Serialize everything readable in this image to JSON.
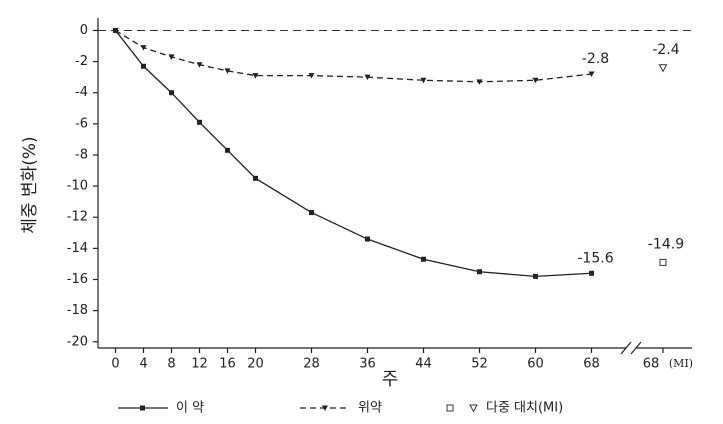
{
  "chart_data": {
    "type": "line",
    "y_label": "체중 변화(%)",
    "x_label": "주",
    "x": [
      0,
      4,
      8,
      12,
      16,
      20,
      28,
      36,
      44,
      52,
      60,
      68
    ],
    "series": [
      {
        "name": "이 약",
        "color": "#222222",
        "dash": false,
        "marker": "square",
        "values": [
          0,
          -2.3,
          -4.0,
          -5.9,
          -7.7,
          -9.5,
          -11.7,
          -13.4,
          -14.7,
          -15.5,
          -15.8,
          -15.6
        ]
      },
      {
        "name": "위약",
        "color": "#222222",
        "dash": true,
        "marker": "triangle",
        "values": [
          0,
          -1.1,
          -1.7,
          -2.2,
          -2.6,
          -2.9,
          -2.9,
          -3.0,
          -3.2,
          -3.3,
          -3.2,
          -2.8
        ]
      }
    ],
    "mi": {
      "name": "다중 대치(MI)",
      "tick_label": "68",
      "tick_suffix": "(MI)",
      "values": [
        -14.9,
        -2.4
      ]
    },
    "xlim": [
      -2.5,
      72.5
    ],
    "xticks": [
      0,
      4,
      8,
      12,
      16,
      20,
      28,
      36,
      44,
      52,
      60,
      68
    ],
    "ylim": [
      -20.4,
      0.8
    ],
    "yticks": [
      0,
      -2,
      -4,
      -6,
      -8,
      -10,
      -12,
      -14,
      -16,
      -18,
      -20
    ]
  }
}
